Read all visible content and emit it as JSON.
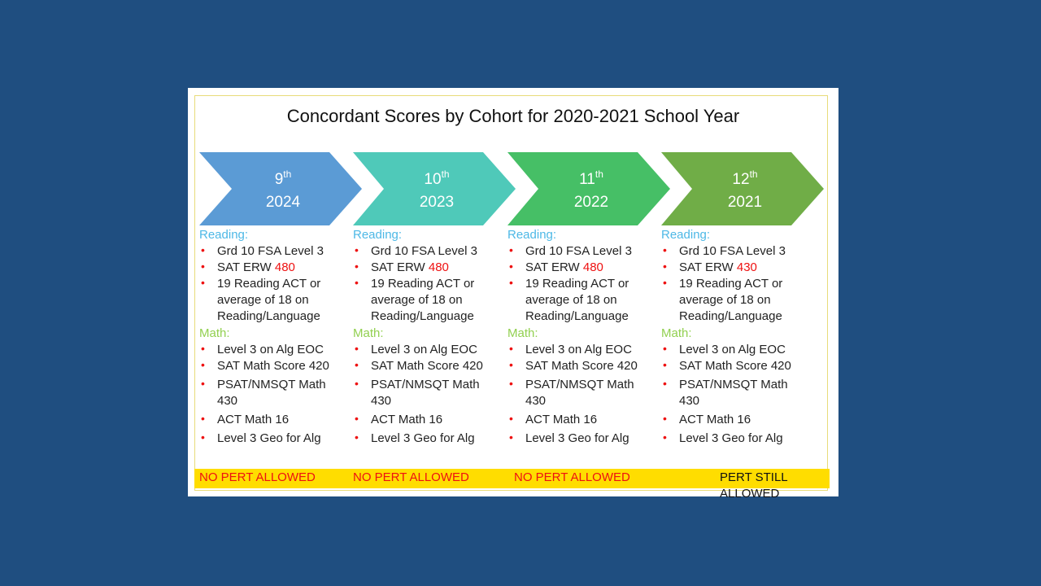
{
  "title": "Concordant Scores by Cohort for 2020-2021 School Year",
  "columns": [
    {
      "grade": "9",
      "suffix": "th",
      "year": "2024",
      "color": "#5b9bd5",
      "reading_label": "Reading:",
      "reading": [
        {
          "text": "Grd 10 FSA Level 3"
        },
        {
          "text": "SAT ERW",
          "highlight": "480"
        },
        {
          "text": "19 Reading ACT or average of 18 on Reading/Language"
        }
      ],
      "math_label": "Math:",
      "math": [
        {
          "text": "Level 3 on Alg EOC"
        },
        {
          "text": "SAT Math Score 420"
        },
        {
          "text": "PSAT/NMSQT Math 430"
        },
        {
          "text": "ACT Math 16"
        },
        {
          "text": "Level 3 Geo for Alg"
        }
      ],
      "footer": "NO PERT ALLOWED",
      "footer_color": "#e11"
    },
    {
      "grade": "10",
      "suffix": "th",
      "year": "2023",
      "color": "#4fc9b9",
      "reading_label": "Reading:",
      "reading": [
        {
          "text": "Grd 10 FSA Level 3"
        },
        {
          "text": "SAT ERW",
          "highlight": "480"
        },
        {
          "text": "19 Reading ACT or average of 18 on Reading/Language"
        }
      ],
      "math_label": "Math:",
      "math": [
        {
          "text": "Level 3 on Alg EOC"
        },
        {
          "text": "SAT Math Score 420"
        },
        {
          "text": "PSAT/NMSQT Math 430"
        },
        {
          "text": "ACT Math 16"
        },
        {
          "text": "Level 3 Geo for Alg"
        }
      ],
      "footer": "NO PERT ALLOWED",
      "footer_color": "#e11"
    },
    {
      "grade": "11",
      "suffix": "th",
      "year": "2022",
      "color": "#46bf66",
      "reading_label": "Reading:",
      "reading": [
        {
          "text": "Grd 10 FSA Level 3"
        },
        {
          "text": "SAT ERW",
          "highlight": "480"
        },
        {
          "text": "19 Reading ACT or average of 18 on Reading/Language"
        }
      ],
      "math_label": "Math:",
      "math": [
        {
          "text": "Level 3 on Alg EOC"
        },
        {
          "text": "SAT Math Score 420"
        },
        {
          "text": "PSAT/NMSQT Math 430"
        },
        {
          "text": "ACT Math 16"
        },
        {
          "text": "Level 3 Geo for Alg"
        }
      ],
      "footer": "NO PERT ALLOWED",
      "footer_color": "#e11"
    },
    {
      "grade": "12",
      "suffix": "th",
      "year": "2021",
      "color": "#70ad47",
      "reading_label": "Reading:",
      "reading": [
        {
          "text": "Grd 10 FSA Level 3"
        },
        {
          "text": "SAT ERW",
          "highlight": "430"
        },
        {
          "text": "19 Reading ACT or average of 18 on Reading/Language"
        }
      ],
      "math_label": "Math:",
      "math": [
        {
          "text": "Level 3 on Alg EOC"
        },
        {
          "text": "SAT Math Score 420"
        },
        {
          "text": "PSAT/NMSQT Math 430"
        },
        {
          "text": "ACT Math 16"
        },
        {
          "text": "Level 3 Geo for Alg"
        }
      ],
      "footer": "PERT STILL ALLOWED",
      "footer_color": "#111"
    }
  ]
}
